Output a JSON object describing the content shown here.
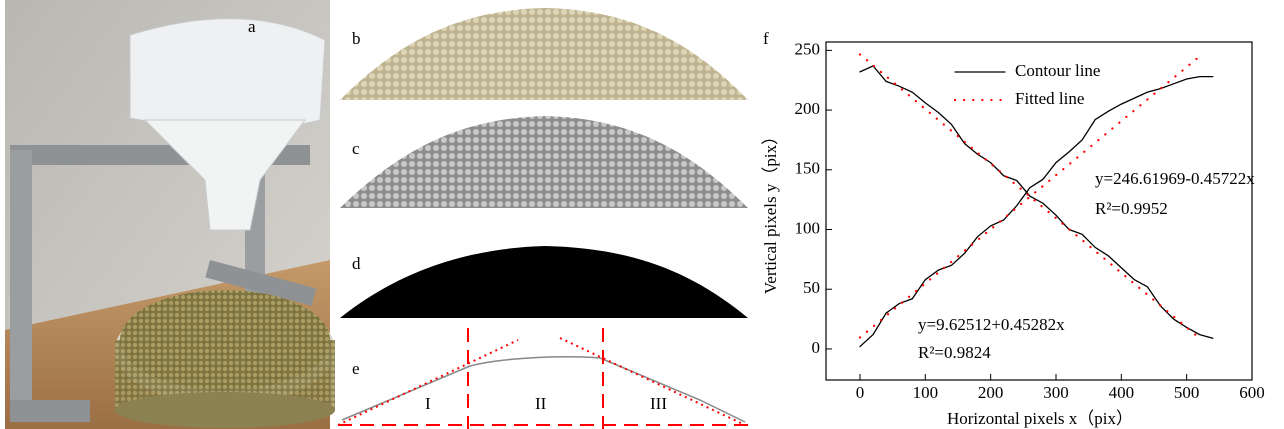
{
  "panel_labels": [
    "a",
    "b",
    "c",
    "d",
    "e"
  ],
  "regions": [
    "I",
    "II",
    "III"
  ],
  "chart_data": {
    "type": "line",
    "title": "f",
    "x_label": "Horizontal pixels x（pix）",
    "y_label": "Vertical pixels y（pix）",
    "xlim": [
      -52,
      600
    ],
    "ylim": [
      -26,
      257
    ],
    "xticks": [
      0,
      100,
      200,
      300,
      400,
      500,
      600
    ],
    "yticks": [
      0,
      50,
      100,
      150,
      200,
      250
    ],
    "legend": "upper center",
    "series": [
      {
        "name": "Contour line",
        "color": "#000000",
        "style": "solid",
        "x": [
          0,
          20,
          40,
          60,
          80,
          100,
          120,
          140,
          160,
          180,
          200,
          220,
          240,
          260,
          280,
          300,
          320,
          340,
          360,
          380,
          400,
          420,
          440,
          460,
          480,
          500,
          520,
          540
        ],
        "values": [
          232,
          237,
          224,
          220,
          215,
          206,
          198,
          188,
          172,
          163,
          156,
          145,
          141,
          128,
          122,
          112,
          100,
          96,
          85,
          78,
          68,
          58,
          52,
          36,
          25,
          18,
          12,
          9
        ]
      },
      {
        "name": "Fitted line",
        "color": "#ff0000",
        "style": "dotted",
        "x": [
          0,
          20,
          40,
          60,
          80,
          100,
          120,
          140,
          160,
          180,
          200,
          220,
          240,
          260,
          280,
          300,
          320,
          340,
          360,
          380,
          400,
          420,
          440,
          460,
          480,
          500,
          520
        ],
        "values": [
          246.6,
          237.5,
          228.3,
          219.2,
          210.0,
          200.9,
          191.7,
          182.6,
          173.5,
          164.3,
          155.2,
          146.0,
          136.9,
          127.7,
          118.6,
          109.5,
          100.3,
          91.2,
          82.0,
          72.9,
          63.7,
          54.6,
          45.4,
          36.3,
          27.2,
          18.0,
          8.9
        ]
      },
      {
        "color": "#000000",
        "style": "solid",
        "x": [
          0,
          20,
          40,
          60,
          80,
          100,
          120,
          140,
          160,
          180,
          200,
          220,
          240,
          260,
          280,
          300,
          320,
          340,
          360,
          380,
          400,
          420,
          440,
          460,
          480,
          500,
          520,
          540
        ],
        "values": [
          2,
          12,
          30,
          38,
          42,
          58,
          66,
          70,
          80,
          94,
          103,
          108,
          120,
          135,
          142,
          156,
          165,
          175,
          192,
          199,
          205,
          210,
          215,
          218,
          222,
          226,
          228,
          228
        ]
      },
      {
        "color": "#ff0000",
        "style": "dotted",
        "x": [
          0,
          20,
          40,
          60,
          80,
          100,
          120,
          140,
          160,
          180,
          200,
          220,
          240,
          260,
          280,
          300,
          320,
          340,
          360,
          380,
          400,
          420,
          440,
          460,
          480,
          500,
          520
        ],
        "values": [
          9.6,
          18.7,
          27.7,
          36.8,
          45.9,
          54.9,
          64.0,
          73.0,
          82.1,
          91.1,
          100.2,
          109.2,
          118.3,
          127.4,
          136.4,
          145.5,
          154.5,
          163.6,
          172.6,
          181.7,
          190.8,
          199.8,
          208.9,
          217.9,
          227.0,
          236.0,
          245.1
        ]
      }
    ],
    "annotations": [
      "y=246.61969-0.45722x",
      "R²=0.9952",
      "y=9.62512+0.45282x",
      "R²=0.9824"
    ]
  }
}
